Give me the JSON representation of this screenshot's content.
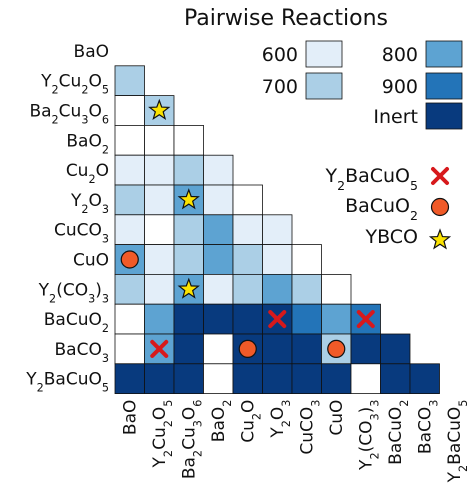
{
  "chart_data": {
    "type": "heatmap",
    "title": "Pairwise Reactions",
    "species": [
      {
        "base": "BaO",
        "sub": ""
      },
      {
        "base": "Y",
        "sub": "2",
        "rest": "Cu",
        "sub2": "2",
        "rest2": "O",
        "sub3": "5"
      },
      {
        "base": "Ba",
        "sub": "2",
        "rest": "Cu",
        "sub2": "3",
        "rest2": "O",
        "sub3": "6"
      },
      {
        "base": "BaO",
        "sub": "2"
      },
      {
        "base": "Cu",
        "sub": "2",
        "rest": "O"
      },
      {
        "base": "Y",
        "sub": "2",
        "rest": "O",
        "sub2": "3"
      },
      {
        "base": "CuCO",
        "sub": "3"
      },
      {
        "base": "CuO"
      },
      {
        "base": "Y",
        "sub": "2",
        "rest": "(CO",
        "sub2": "3",
        "rest2": ")",
        "sub3": "3"
      },
      {
        "base": "BaCuO",
        "sub": "2"
      },
      {
        "base": "BaCO",
        "sub": "3"
      },
      {
        "base": "Y",
        "sub": "2",
        "rest": "BaCuO",
        "sub2": "5"
      }
    ],
    "matrix_legend": [
      {
        "label": "600",
        "level": "600"
      },
      {
        "label": "700",
        "level": "700"
      },
      {
        "label": "800",
        "level": "800"
      },
      {
        "label": "900",
        "level": "900"
      },
      {
        "label": "Inert",
        "level": "inert"
      }
    ],
    "colors": {
      "none": "#ffffff",
      "600": "#e3eef9",
      "700": "#abcfe6",
      "800": "#5da3d2",
      "900": "#2374b8",
      "inert": "#083a7e",
      "x_marker": "#d7191c",
      "circle_marker": "#f05a28",
      "star_marker": "#fce300"
    },
    "cells": [
      [],
      [
        "700"
      ],
      [
        "none",
        "700"
      ],
      [
        "none",
        "none",
        "none"
      ],
      [
        "600",
        "600",
        "700",
        "600"
      ],
      [
        "700",
        "600",
        "800",
        "600",
        "none"
      ],
      [
        "600",
        "none",
        "700",
        "800",
        "600",
        "600"
      ],
      [
        "800",
        "600",
        "700",
        "800",
        "700",
        "600",
        "none"
      ],
      [
        "700",
        "600",
        "800",
        "600",
        "700",
        "800",
        "700",
        "none"
      ],
      [
        "none",
        "800",
        "inert",
        "inert",
        "inert",
        "inert",
        "900",
        "800",
        "900"
      ],
      [
        "none",
        "800",
        "inert",
        "none",
        "inert",
        "inert",
        "inert",
        "700",
        "inert",
        "inert"
      ],
      [
        "inert",
        "inert",
        "inert",
        "none",
        "inert",
        "inert",
        "inert",
        "inert",
        "none",
        "inert",
        "inert"
      ]
    ],
    "markers": [
      {
        "row": 2,
        "col": 1,
        "kind": "star"
      },
      {
        "row": 5,
        "col": 2,
        "kind": "star"
      },
      {
        "row": 8,
        "col": 2,
        "kind": "star"
      },
      {
        "row": 7,
        "col": 0,
        "kind": "circle"
      },
      {
        "row": 10,
        "col": 4,
        "kind": "circle"
      },
      {
        "row": 10,
        "col": 7,
        "kind": "circle"
      },
      {
        "row": 9,
        "col": 5,
        "kind": "x"
      },
      {
        "row": 9,
        "col": 8,
        "kind": "x"
      },
      {
        "row": 10,
        "col": 1,
        "kind": "x"
      }
    ],
    "marker_legend": [
      {
        "kind": "x",
        "label": {
          "base": "Y",
          "sub": "2",
          "rest": "BaCuO",
          "sub2": "5"
        }
      },
      {
        "kind": "circle",
        "label": {
          "base": "BaCuO",
          "sub": "2"
        }
      },
      {
        "kind": "star",
        "label": {
          "base": "YBCO"
        }
      }
    ]
  }
}
